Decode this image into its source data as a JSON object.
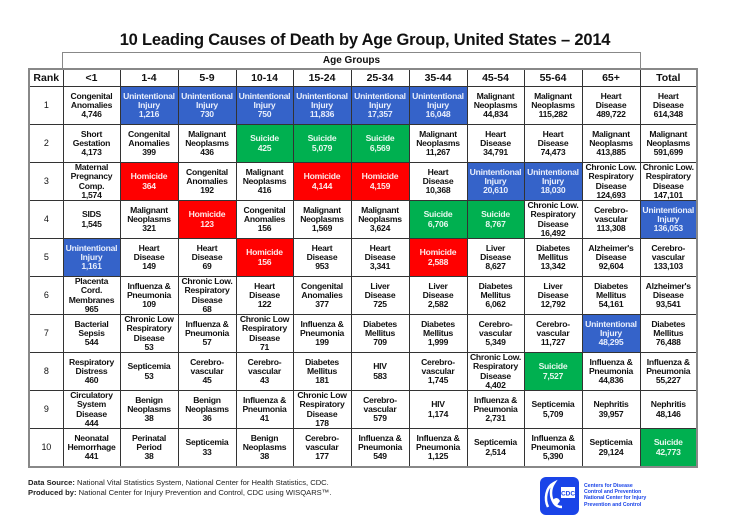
{
  "title": "10 Leading Causes of Death by Age Group, United States – 2014",
  "age_groups_label": "Age Groups",
  "columns": [
    "Rank",
    "<1",
    "1-4",
    "5-9",
    "10-14",
    "15-24",
    "25-34",
    "35-44",
    "45-54",
    "55-64",
    "65+",
    "Total"
  ],
  "highlight_colors": {
    "ui": "#3563c9",
    "hom": "#ff0000",
    "sui": "#00b050"
  },
  "rows": [
    {
      "rank": "1",
      "cells": [
        {
          "c": "Congenital\nAnomalies",
          "n": "4,746",
          "h": ""
        },
        {
          "c": "Unintentional\nInjury",
          "n": "1,216",
          "h": "ui"
        },
        {
          "c": "Unintentional\nInjury",
          "n": "730",
          "h": "ui"
        },
        {
          "c": "Unintentional\nInjury",
          "n": "750",
          "h": "ui"
        },
        {
          "c": "Unintentional\nInjury",
          "n": "11,836",
          "h": "ui"
        },
        {
          "c": "Unintentional\nInjury",
          "n": "17,357",
          "h": "ui"
        },
        {
          "c": "Unintentional\nInjury",
          "n": "16,048",
          "h": "ui"
        },
        {
          "c": "Malignant\nNeoplasms",
          "n": "44,834",
          "h": ""
        },
        {
          "c": "Malignant\nNeoplasms",
          "n": "115,282",
          "h": ""
        },
        {
          "c": "Heart\nDisease",
          "n": "489,722",
          "h": ""
        },
        {
          "c": "Heart\nDisease",
          "n": "614,348",
          "h": ""
        }
      ]
    },
    {
      "rank": "2",
      "cells": [
        {
          "c": "Short\nGestation",
          "n": "4,173",
          "h": ""
        },
        {
          "c": "Congenital\nAnomalies",
          "n": "399",
          "h": ""
        },
        {
          "c": "Malignant\nNeoplasms",
          "n": "436",
          "h": ""
        },
        {
          "c": "Suicide",
          "n": "425",
          "h": "sui"
        },
        {
          "c": "Suicide",
          "n": "5,079",
          "h": "sui"
        },
        {
          "c": "Suicide",
          "n": "6,569",
          "h": "sui"
        },
        {
          "c": "Malignant\nNeoplasms",
          "n": "11,267",
          "h": ""
        },
        {
          "c": "Heart\nDisease",
          "n": "34,791",
          "h": ""
        },
        {
          "c": "Heart\nDisease",
          "n": "74,473",
          "h": ""
        },
        {
          "c": "Malignant\nNeoplasms",
          "n": "413,885",
          "h": ""
        },
        {
          "c": "Malignant\nNeoplasms",
          "n": "591,699",
          "h": ""
        }
      ]
    },
    {
      "rank": "3",
      "cells": [
        {
          "c": "Maternal\nPregnancy\nComp.",
          "n": "1,574",
          "h": ""
        },
        {
          "c": "Homicide",
          "n": "364",
          "h": "hom"
        },
        {
          "c": "Congenital\nAnomalies",
          "n": "192",
          "h": ""
        },
        {
          "c": "Malignant\nNeoplasms",
          "n": "416",
          "h": ""
        },
        {
          "c": "Homicide",
          "n": "4,144",
          "h": "hom"
        },
        {
          "c": "Homicide",
          "n": "4,159",
          "h": "hom"
        },
        {
          "c": "Heart\nDisease",
          "n": "10,368",
          "h": ""
        },
        {
          "c": "Unintentional\nInjury",
          "n": "20,610",
          "h": "ui"
        },
        {
          "c": "Unintentional\nInjury",
          "n": "18,030",
          "h": "ui"
        },
        {
          "c": "Chronic Low.\nRespiratory\nDisease",
          "n": "124,693",
          "h": ""
        },
        {
          "c": "Chronic Low.\nRespiratory\nDisease",
          "n": "147,101",
          "h": ""
        }
      ]
    },
    {
      "rank": "4",
      "cells": [
        {
          "c": "SIDS",
          "n": "1,545",
          "h": ""
        },
        {
          "c": "Malignant\nNeoplasms",
          "n": "321",
          "h": ""
        },
        {
          "c": "Homicide",
          "n": "123",
          "h": "hom"
        },
        {
          "c": "Congenital\nAnomalies",
          "n": "156",
          "h": ""
        },
        {
          "c": "Malignant\nNeoplasms",
          "n": "1,569",
          "h": ""
        },
        {
          "c": "Malignant\nNeoplasms",
          "n": "3,624",
          "h": ""
        },
        {
          "c": "Suicide",
          "n": "6,706",
          "h": "sui"
        },
        {
          "c": "Suicide",
          "n": "8,767",
          "h": "sui"
        },
        {
          "c": "Chronic Low.\nRespiratory\nDisease",
          "n": "16,492",
          "h": ""
        },
        {
          "c": "Cerebro-\nvascular",
          "n": "113,308",
          "h": ""
        },
        {
          "c": "Unintentional\nInjury",
          "n": "136,053",
          "h": "ui"
        }
      ]
    },
    {
      "rank": "5",
      "cells": [
        {
          "c": "Unintentional\nInjury",
          "n": "1,161",
          "h": "ui"
        },
        {
          "c": "Heart\nDisease",
          "n": "149",
          "h": ""
        },
        {
          "c": "Heart\nDisease",
          "n": "69",
          "h": ""
        },
        {
          "c": "Homicide",
          "n": "156",
          "h": "hom"
        },
        {
          "c": "Heart\nDisease",
          "n": "953",
          "h": ""
        },
        {
          "c": "Heart\nDisease",
          "n": "3,341",
          "h": ""
        },
        {
          "c": "Homicide",
          "n": "2,588",
          "h": "hom"
        },
        {
          "c": "Liver\nDisease",
          "n": "8,627",
          "h": ""
        },
        {
          "c": "Diabetes\nMellitus",
          "n": "13,342",
          "h": ""
        },
        {
          "c": "Alzheimer's\nDisease",
          "n": "92,604",
          "h": ""
        },
        {
          "c": "Cerebro-\nvascular",
          "n": "133,103",
          "h": ""
        }
      ]
    },
    {
      "rank": "6",
      "cells": [
        {
          "c": "Placenta Cord.\nMembranes",
          "n": "965",
          "h": ""
        },
        {
          "c": "Influenza &\nPneumonia",
          "n": "109",
          "h": ""
        },
        {
          "c": "Chronic Low.\nRespiratory\nDisease",
          "n": "68",
          "h": ""
        },
        {
          "c": "Heart\nDisease",
          "n": "122",
          "h": ""
        },
        {
          "c": "Congenital\nAnomalies",
          "n": "377",
          "h": ""
        },
        {
          "c": "Liver\nDisease",
          "n": "725",
          "h": ""
        },
        {
          "c": "Liver\nDisease",
          "n": "2,582",
          "h": ""
        },
        {
          "c": "Diabetes\nMellitus",
          "n": "6,062",
          "h": ""
        },
        {
          "c": "Liver\nDisease",
          "n": "12,792",
          "h": ""
        },
        {
          "c": "Diabetes\nMellitus",
          "n": "54,161",
          "h": ""
        },
        {
          "c": "Alzheimer's\nDisease",
          "n": "93,541",
          "h": ""
        }
      ]
    },
    {
      "rank": "7",
      "cells": [
        {
          "c": "Bacterial\nSepsis",
          "n": "544",
          "h": ""
        },
        {
          "c": "Chronic Low\nRespiratory\nDisease",
          "n": "53",
          "h": ""
        },
        {
          "c": "Influenza &\nPneumonia",
          "n": "57",
          "h": ""
        },
        {
          "c": "Chronic Low\nRespiratory\nDisease",
          "n": "71",
          "h": ""
        },
        {
          "c": "Influenza &\nPneumonia",
          "n": "199",
          "h": ""
        },
        {
          "c": "Diabetes\nMellitus",
          "n": "709",
          "h": ""
        },
        {
          "c": "Diabetes\nMellitus",
          "n": "1,999",
          "h": ""
        },
        {
          "c": "Cerebro-\nvascular",
          "n": "5,349",
          "h": ""
        },
        {
          "c": "Cerebro-\nvascular",
          "n": "11,727",
          "h": ""
        },
        {
          "c": "Unintentional\nInjury",
          "n": "48,295",
          "h": "ui"
        },
        {
          "c": "Diabetes\nMellitus",
          "n": "76,488",
          "h": ""
        }
      ]
    },
    {
      "rank": "8",
      "cells": [
        {
          "c": "Respiratory\nDistress",
          "n": "460",
          "h": ""
        },
        {
          "c": "Septicemia",
          "n": "53",
          "h": ""
        },
        {
          "c": "Cerebro-\nvascular",
          "n": "45",
          "h": ""
        },
        {
          "c": "Cerebro-\nvascular",
          "n": "43",
          "h": ""
        },
        {
          "c": "Diabetes\nMellitus",
          "n": "181",
          "h": ""
        },
        {
          "c": "HIV",
          "n": "583",
          "h": ""
        },
        {
          "c": "Cerebro-\nvascular",
          "n": "1,745",
          "h": ""
        },
        {
          "c": "Chronic Low.\nRespiratory\nDisease",
          "n": "4,402",
          "h": ""
        },
        {
          "c": "Suicide",
          "n": "7,527",
          "h": "sui"
        },
        {
          "c": "Influenza &\nPneumonia",
          "n": "44,836",
          "h": ""
        },
        {
          "c": "Influenza &\nPneumonia",
          "n": "55,227",
          "h": ""
        }
      ]
    },
    {
      "rank": "9",
      "cells": [
        {
          "c": "Circulatory\nSystem\nDisease",
          "n": "444",
          "h": ""
        },
        {
          "c": "Benign\nNeoplasms",
          "n": "38",
          "h": ""
        },
        {
          "c": "Benign\nNeoplasms",
          "n": "36",
          "h": ""
        },
        {
          "c": "Influenza &\nPneumonia",
          "n": "41",
          "h": ""
        },
        {
          "c": "Chronic Low\nRespiratory\nDisease",
          "n": "178",
          "h": ""
        },
        {
          "c": "Cerebro-\nvascular",
          "n": "579",
          "h": ""
        },
        {
          "c": "HIV",
          "n": "1,174",
          "h": ""
        },
        {
          "c": "Influenza &\nPneumonia",
          "n": "2,731",
          "h": ""
        },
        {
          "c": "Septicemia",
          "n": "5,709",
          "h": ""
        },
        {
          "c": "Nephritis",
          "n": "39,957",
          "h": ""
        },
        {
          "c": "Nephritis",
          "n": "48,146",
          "h": ""
        }
      ]
    },
    {
      "rank": "10",
      "cells": [
        {
          "c": "Neonatal\nHemorrhage",
          "n": "441",
          "h": ""
        },
        {
          "c": "Perinatal Period",
          "n": "38",
          "h": ""
        },
        {
          "c": "Septicemia",
          "n": "33",
          "h": ""
        },
        {
          "c": "Benign\nNeoplasms",
          "n": "38",
          "h": ""
        },
        {
          "c": "Cerebro-\nvascular",
          "n": "177",
          "h": ""
        },
        {
          "c": "Influenza &\nPneumonia",
          "n": "549",
          "h": ""
        },
        {
          "c": "Influenza &\nPneumonia",
          "n": "1,125",
          "h": ""
        },
        {
          "c": "Septicemia",
          "n": "2,514",
          "h": ""
        },
        {
          "c": "Influenza &\nPneumonia",
          "n": "5,390",
          "h": ""
        },
        {
          "c": "Septicemia",
          "n": "29,124",
          "h": ""
        },
        {
          "c": "Suicide",
          "n": "42,773",
          "h": "sui"
        }
      ]
    }
  ],
  "footer": {
    "source_label": "Data Source:",
    "source_text": " National Vital Statistics System, National Center for Health Statistics, CDC.",
    "produced_label": "Produced by:",
    "produced_text": " National Center for Injury Prevention and Control, CDC using WISQARS™."
  },
  "logo": {
    "icon": "hhs-cdc-logo",
    "text": "Centers for Disease\nControl and Prevention\nNational Center for Injury\nPrevention and Control"
  }
}
